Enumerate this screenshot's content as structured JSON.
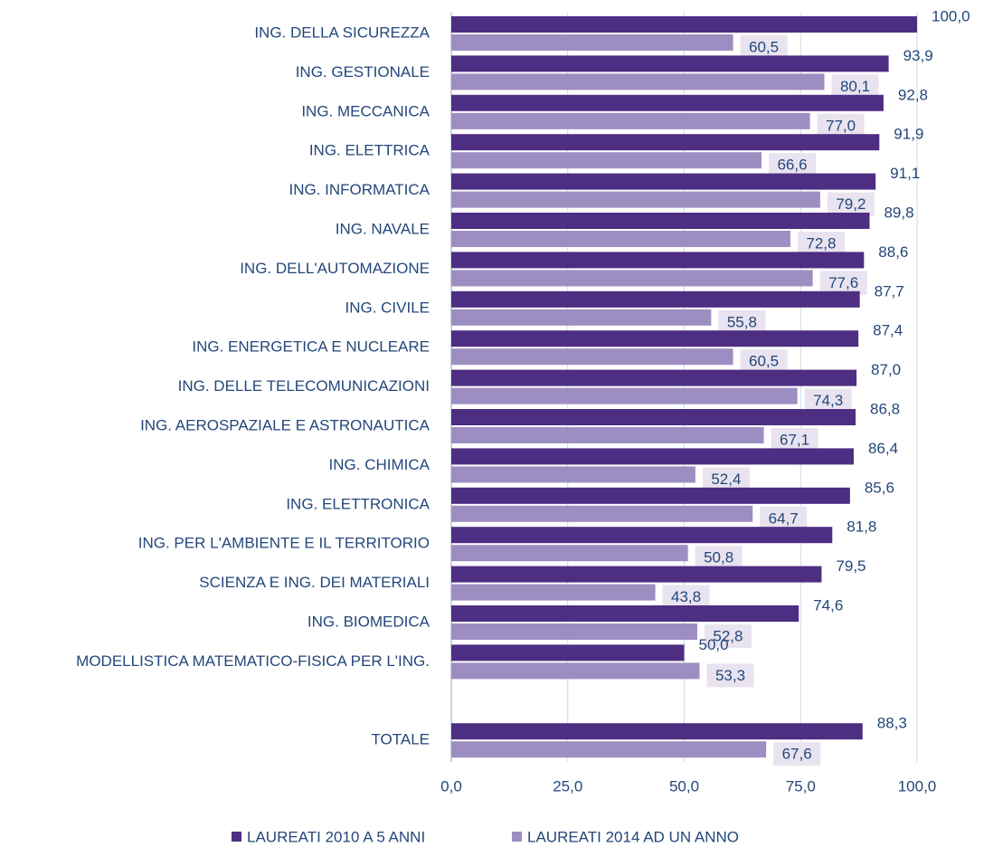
{
  "chart_data": {
    "type": "bar",
    "orientation": "horizontal",
    "categories": [
      "ING. DELLA SICUREZZA",
      "ING. GESTIONALE",
      "ING. MECCANICA",
      "ING. ELETTRICA",
      "ING. INFORMATICA",
      "ING. NAVALE",
      "ING. DELL'AUTOMAZIONE",
      "ING. CIVILE",
      "ING. ENERGETICA E NUCLEARE",
      "ING. DELLE TELECOMUNICAZIONI",
      "ING. AEROSPAZIALE E ASTRONAUTICA",
      "ING. CHIMICA",
      "ING. ELETTRONICA",
      "ING. PER L'AMBIENTE E IL TERRITORIO",
      "SCIENZA E ING. DEI MATERIALI",
      "ING. BIOMEDICA",
      "MODELLISTICA MATEMATICO-FISICA PER L'ING.",
      null,
      "TOTALE"
    ],
    "series": [
      {
        "name": "LAUREATI 2010 A 5 ANNI",
        "color": "#4e2e83",
        "values": [
          100.0,
          93.9,
          92.8,
          91.9,
          91.1,
          89.8,
          88.6,
          87.7,
          87.4,
          87.0,
          86.8,
          86.4,
          85.6,
          81.8,
          79.5,
          74.6,
          50.0,
          null,
          88.3
        ],
        "value_labels": [
          "100,0",
          "93,9",
          "92,8",
          "91,9",
          "91,1",
          "89,8",
          "88,6",
          "87,7",
          "87,4",
          "87,0",
          "86,8",
          "86,4",
          "85,6",
          "81,8",
          "79,5",
          "74,6",
          "50,0",
          null,
          "88,3"
        ]
      },
      {
        "name": "LAUREATI 2014 AD UN ANNO",
        "color": "#9d8ec2",
        "values": [
          60.5,
          80.1,
          77.0,
          66.6,
          79.2,
          72.8,
          77.6,
          55.8,
          60.5,
          74.3,
          67.1,
          52.4,
          64.7,
          50.8,
          43.8,
          52.8,
          53.3,
          null,
          67.6
        ],
        "value_labels": [
          "60,5",
          "80,1",
          "77,0",
          "66,6",
          "79,2",
          "72,8",
          "77,6",
          "55,8",
          "60,5",
          "74,3",
          "67,1",
          "52,4",
          "64,7",
          "50,8",
          "43,8",
          "52,8",
          "53,3",
          null,
          "67,6"
        ]
      }
    ],
    "xlim": [
      0,
      100
    ],
    "xticks": [
      {
        "value": 0,
        "label": "0,0"
      },
      {
        "value": 25,
        "label": "25,0"
      },
      {
        "value": 50,
        "label": "50,0"
      },
      {
        "value": 75,
        "label": "75,0"
      },
      {
        "value": 100,
        "label": "100,0"
      }
    ],
    "grid": true,
    "legend": "bottom"
  }
}
